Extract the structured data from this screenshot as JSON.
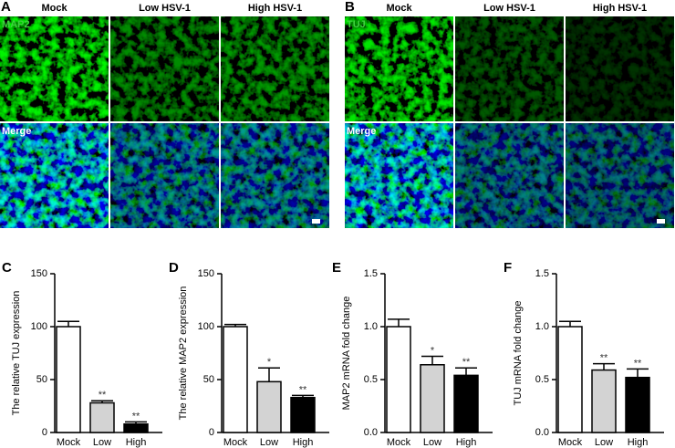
{
  "panels": [
    {
      "label": "A",
      "columns": [
        "Mock",
        "Low HSV-1",
        "High HSV-1"
      ],
      "rows": [
        "MAP2",
        "Merge"
      ]
    },
    {
      "label": "B",
      "columns": [
        "Mock",
        "Low HSV-1",
        "High HSV-1"
      ],
      "rows": [
        "TUJ",
        "Merge"
      ]
    }
  ],
  "chart_data": [
    {
      "type": "bar",
      "panel": "C",
      "y_label": "The relative TUJ expression",
      "categories": [
        "Mock",
        "Low",
        "High"
      ],
      "values": [
        100,
        28,
        8
      ],
      "errors": [
        5,
        2,
        2
      ],
      "colors": [
        "#ffffff",
        "#d3d3d3",
        "#000000"
      ],
      "annotations": [
        null,
        "**",
        "**"
      ],
      "ylim": [
        0,
        150
      ],
      "yticks": [
        0,
        50,
        100,
        150
      ]
    },
    {
      "type": "bar",
      "panel": "D",
      "y_label": "The relative MAP2 expression",
      "categories": [
        "Mock",
        "Low",
        "High"
      ],
      "values": [
        100,
        48,
        33
      ],
      "errors": [
        2,
        13,
        2
      ],
      "colors": [
        "#ffffff",
        "#d3d3d3",
        "#000000"
      ],
      "annotations": [
        null,
        "*",
        "**"
      ],
      "ylim": [
        0,
        150
      ],
      "yticks": [
        0,
        50,
        100,
        150
      ]
    },
    {
      "type": "bar",
      "panel": "E",
      "y_label": "MAP2 mRNA fold change",
      "categories": [
        "Mock",
        "Low",
        "High"
      ],
      "values": [
        1.0,
        0.64,
        0.54
      ],
      "errors": [
        0.07,
        0.08,
        0.07
      ],
      "colors": [
        "#ffffff",
        "#d3d3d3",
        "#000000"
      ],
      "annotations": [
        null,
        "*",
        "**"
      ],
      "ylim": [
        0,
        1.5
      ],
      "yticks": [
        {
          "value": 0,
          "label": "0.0"
        },
        0.5,
        {
          "value": 1,
          "label": "1.0"
        },
        1.5
      ]
    },
    {
      "type": "bar",
      "panel": "F",
      "y_label": "TUJ mRNA fold change",
      "categories": [
        "Mock",
        "Low",
        "High"
      ],
      "values": [
        1.0,
        0.59,
        0.52
      ],
      "errors": [
        0.05,
        0.06,
        0.08
      ],
      "colors": [
        "#ffffff",
        "#d3d3d3",
        "#000000"
      ],
      "annotations": [
        null,
        "**",
        "**"
      ],
      "ylim": [
        0,
        1.5
      ],
      "yticks": [
        {
          "value": 0,
          "label": "0.0"
        },
        0.5,
        {
          "value": 1,
          "label": "1.0"
        },
        1.5
      ]
    }
  ]
}
